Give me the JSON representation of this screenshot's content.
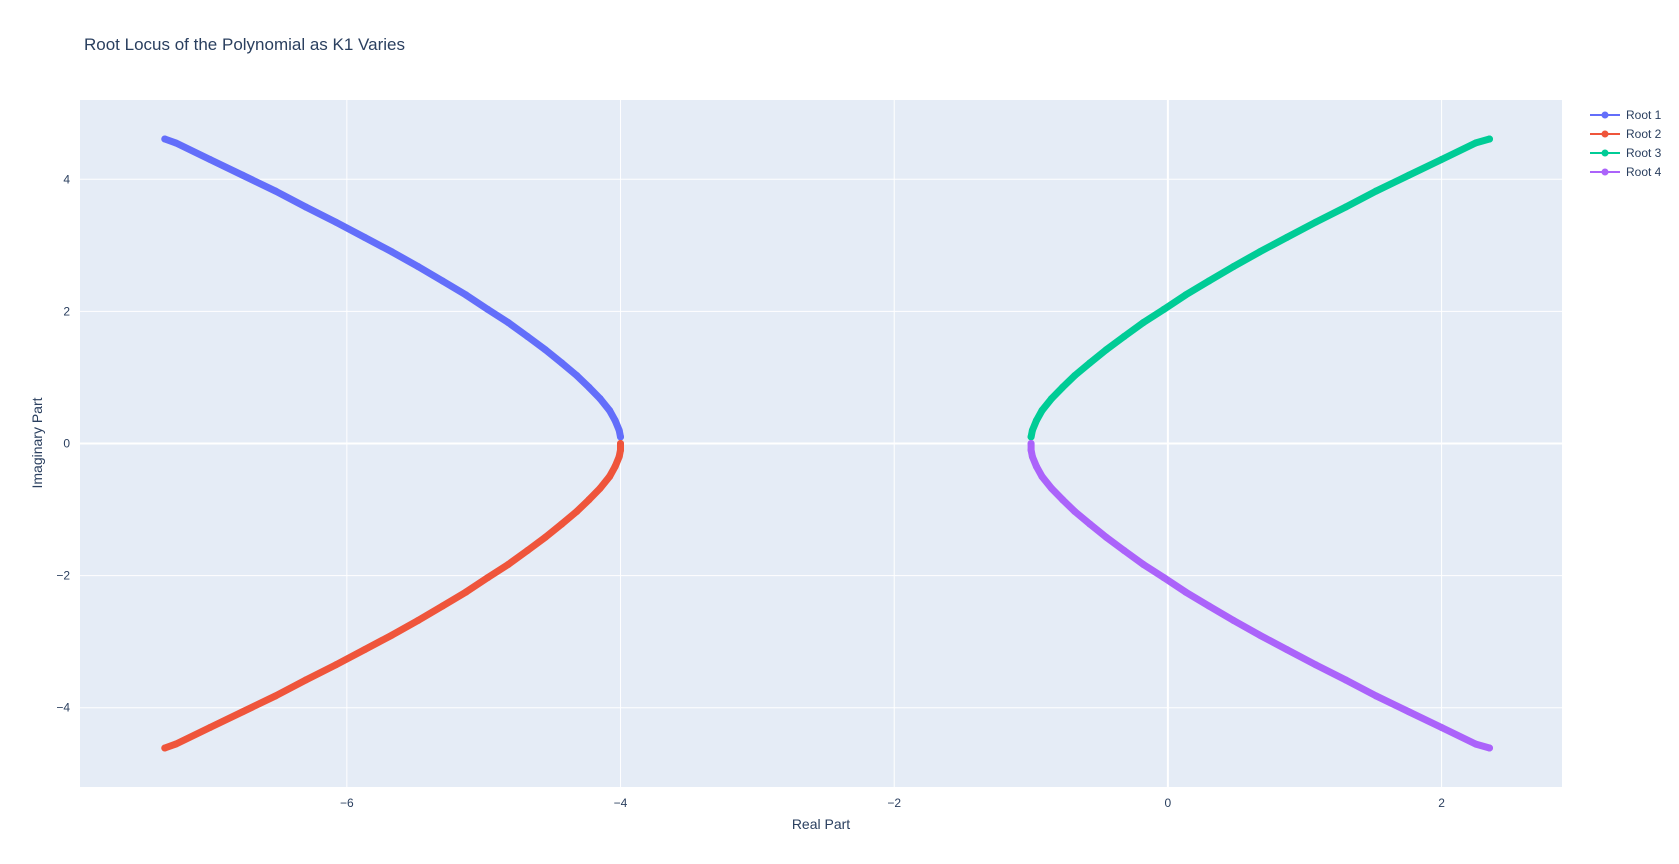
{
  "chart_data": {
    "type": "scatter",
    "title": "Root Locus of the Polynomial as K1 Varies",
    "xlabel": "Real Part",
    "ylabel": "Imaginary Part",
    "xlim": [
      -7.95,
      2.88
    ],
    "ylim": [
      -5.2,
      5.2
    ],
    "xticks": [
      -6,
      -4,
      -2,
      0,
      2
    ],
    "yticks": [
      -4,
      -2,
      0,
      2,
      4
    ],
    "tick_labels_x": [
      "−6",
      "−4",
      "−2",
      "0",
      "2"
    ],
    "tick_labels_y": [
      "−4",
      "−2",
      "0",
      "2",
      "4"
    ],
    "grid": true,
    "legend_position": "top-right",
    "mode": "lines+markers",
    "series": [
      {
        "name": "Root 1",
        "color": "#636efa",
        "x": [
          -4.0,
          -4.01,
          -4.04,
          -4.08,
          -4.15,
          -4.23,
          -4.32,
          -4.43,
          -4.55,
          -4.68,
          -4.82,
          -4.97,
          -5.13,
          -5.3,
          -5.48,
          -5.67,
          -5.87,
          -6.08,
          -6.3,
          -6.52,
          -6.76,
          -7.0,
          -7.25,
          -7.33
        ],
        "y": [
          0.1,
          0.2,
          0.35,
          0.5,
          0.68,
          0.85,
          1.03,
          1.22,
          1.42,
          1.62,
          1.83,
          2.03,
          2.25,
          2.46,
          2.68,
          2.9,
          3.12,
          3.35,
          3.58,
          3.82,
          4.06,
          4.3,
          4.55,
          4.61
        ]
      },
      {
        "name": "Root 2",
        "color": "#ef553b",
        "x": [
          -4.0,
          -4.0,
          -4.01,
          -4.04,
          -4.08,
          -4.15,
          -4.23,
          -4.32,
          -4.43,
          -4.55,
          -4.68,
          -4.82,
          -4.97,
          -5.13,
          -5.3,
          -5.48,
          -5.67,
          -5.87,
          -6.08,
          -6.3,
          -6.52,
          -6.76,
          -7.0,
          -7.25,
          -7.33
        ],
        "y": [
          0.0,
          -0.1,
          -0.2,
          -0.35,
          -0.5,
          -0.68,
          -0.85,
          -1.03,
          -1.22,
          -1.42,
          -1.62,
          -1.83,
          -2.03,
          -2.25,
          -2.46,
          -2.68,
          -2.9,
          -3.12,
          -3.35,
          -3.58,
          -3.82,
          -4.06,
          -4.3,
          -4.55,
          -4.61
        ]
      },
      {
        "name": "Root 3",
        "color": "#00cc96",
        "x": [
          -1.0,
          -0.99,
          -0.96,
          -0.92,
          -0.85,
          -0.77,
          -0.68,
          -0.57,
          -0.45,
          -0.32,
          -0.18,
          -0.03,
          0.13,
          0.3,
          0.48,
          0.67,
          0.87,
          1.08,
          1.3,
          1.52,
          1.76,
          2.0,
          2.25,
          2.35
        ],
        "y": [
          0.1,
          0.2,
          0.35,
          0.5,
          0.68,
          0.85,
          1.03,
          1.22,
          1.42,
          1.62,
          1.83,
          2.03,
          2.25,
          2.46,
          2.68,
          2.9,
          3.12,
          3.35,
          3.58,
          3.82,
          4.06,
          4.3,
          4.55,
          4.61
        ]
      },
      {
        "name": "Root 4",
        "color": "#ab63fa",
        "x": [
          -1.0,
          -1.0,
          -0.99,
          -0.96,
          -0.92,
          -0.85,
          -0.77,
          -0.68,
          -0.57,
          -0.45,
          -0.32,
          -0.18,
          -0.03,
          0.13,
          0.3,
          0.48,
          0.67,
          0.87,
          1.08,
          1.3,
          1.52,
          1.76,
          2.0,
          2.25,
          2.35
        ],
        "y": [
          0.0,
          -0.1,
          -0.2,
          -0.35,
          -0.5,
          -0.68,
          -0.85,
          -1.03,
          -1.22,
          -1.42,
          -1.62,
          -1.83,
          -2.03,
          -2.25,
          -2.46,
          -2.68,
          -2.9,
          -3.12,
          -3.35,
          -3.58,
          -3.82,
          -4.06,
          -4.3,
          -4.55,
          -4.61
        ]
      }
    ]
  },
  "colors": {
    "plot_background": "#e5ecf6",
    "grid": "#ffffff",
    "text": "#2a3f5f"
  }
}
